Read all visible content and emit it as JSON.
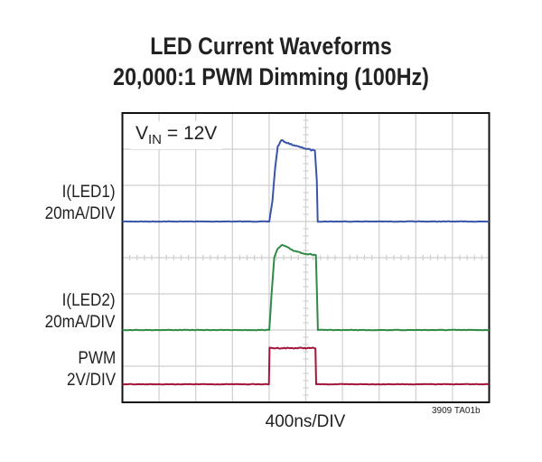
{
  "chart_data": {
    "type": "line",
    "title": [
      "LED Current Waveforms",
      "20,000:1 PWM Dimming (100Hz)"
    ],
    "annotation": {
      "text": "V",
      "sub": "IN",
      "rest": " = 12V"
    },
    "xlabel": "400ns/DIV",
    "footnote": "3909 TA01b",
    "grid": true,
    "x_unit": "ns",
    "x_range": [
      0,
      4000
    ],
    "colors": {
      "I(LED1)": "#3a55a8",
      "I(LED2)": "#2f8a46",
      "PWM": "#a3153a",
      "grid": "#cfcfcf",
      "frame": "#111111"
    },
    "series": [
      {
        "name": "I(LED1)",
        "scale": "20mA/DIV",
        "unit": "mA",
        "points": [
          [
            0,
            0
          ],
          [
            1602,
            0
          ],
          [
            1636,
            11.5
          ],
          [
            1666,
            30
          ],
          [
            1695,
            41.5
          ],
          [
            1735,
            45
          ],
          [
            1794,
            43.5
          ],
          [
            1912,
            41.5
          ],
          [
            2060,
            39.5
          ],
          [
            2100,
            39.5
          ],
          [
            2120,
            22.5
          ],
          [
            2130,
            0
          ],
          [
            4000,
            0
          ]
        ]
      },
      {
        "name": "I(LED2)",
        "scale": "20mA/DIV",
        "unit": "mA",
        "points": [
          [
            0,
            0
          ],
          [
            1602,
            0
          ],
          [
            1627,
            20
          ],
          [
            1656,
            40
          ],
          [
            1695,
            45
          ],
          [
            1745,
            47
          ],
          [
            1863,
            44
          ],
          [
            2010,
            42
          ],
          [
            2110,
            41.5
          ],
          [
            2122,
            20
          ],
          [
            2132,
            0
          ],
          [
            4000,
            0
          ]
        ]
      },
      {
        "name": "PWM",
        "scale": "2V/DIV",
        "unit": "V",
        "points": [
          [
            0,
            0
          ],
          [
            1598,
            0
          ],
          [
            1605,
            2
          ],
          [
            2105,
            2
          ],
          [
            2113,
            0
          ],
          [
            4000,
            0
          ]
        ]
      }
    ]
  }
}
